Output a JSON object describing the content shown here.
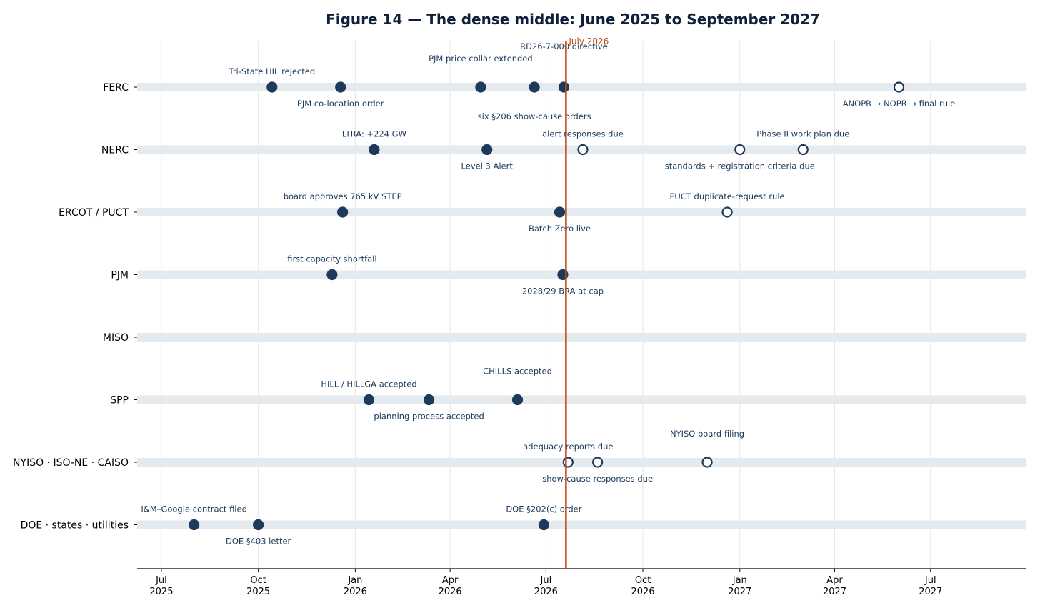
{
  "chart_data": {
    "type": "timeline",
    "title": "Figure 14 — The dense middle: June 2025 to September 2027",
    "x_range": [
      "2025-06-08",
      "2027-09-30"
    ],
    "grid": true,
    "colors": {
      "lane_band": "#e5eaef",
      "marker_fill": "#1d3a5c",
      "open_marker_fill": "#ffffff",
      "marker_stroke": "#1d3a5c",
      "grid": "#e6e6e6",
      "reference_line": "#c0460e",
      "label": "#1b3a5c",
      "title": "#0f2139"
    },
    "x_ticks": [
      {
        "date": "2025-07-01",
        "label": [
          "Jul",
          "2025"
        ]
      },
      {
        "date": "2025-10-01",
        "label": [
          "Oct",
          "2025"
        ]
      },
      {
        "date": "2026-01-01",
        "label": [
          "Jan",
          "2026"
        ]
      },
      {
        "date": "2026-04-01",
        "label": [
          "Apr",
          "2026"
        ]
      },
      {
        "date": "2026-07-01",
        "label": [
          "Jul",
          "2026"
        ]
      },
      {
        "date": "2026-10-01",
        "label": [
          "Oct",
          "2026"
        ]
      },
      {
        "date": "2027-01-01",
        "label": [
          "Jan",
          "2027"
        ]
      },
      {
        "date": "2027-04-01",
        "label": [
          "Apr",
          "2027"
        ]
      },
      {
        "date": "2027-07-01",
        "label": [
          "Jul",
          "2027"
        ]
      }
    ],
    "reference_line": {
      "date": "2026-07-20",
      "label": "July 2026"
    },
    "lanes": [
      {
        "name": "FERC",
        "events": [
          {
            "date": "2025-10-14",
            "label": "Tri-State HIL rejected",
            "label_pos": "above",
            "open": false
          },
          {
            "date": "2025-12-18",
            "label": "PJM co-location order",
            "label_pos": "below",
            "open": false
          },
          {
            "date": "2026-04-30",
            "label": "PJM price collar extended",
            "label_pos": "above2",
            "open": false
          },
          {
            "date": "2026-06-20",
            "label": "six §206 show-cause orders",
            "label_pos": "below2",
            "open": false
          },
          {
            "date": "2026-07-18",
            "label": "RD26-7-000 directive",
            "label_pos": "above3",
            "open": false
          },
          {
            "date": "2027-06-01",
            "label": "ANOPR → NOPR → final rule",
            "label_pos": "below",
            "open": true
          }
        ]
      },
      {
        "name": "NERC",
        "events": [
          {
            "date": "2026-01-19",
            "label": "LTRA: +224 GW",
            "label_pos": "above",
            "open": false
          },
          {
            "date": "2026-05-06",
            "label": "Level 3 Alert",
            "label_pos": "below",
            "open": false
          },
          {
            "date": "2026-08-05",
            "label": "alert responses due",
            "label_pos": "above",
            "open": true
          },
          {
            "date": "2027-01-01",
            "label": "standards + registration criteria due",
            "label_pos": "below",
            "open": true
          },
          {
            "date": "2027-03-02",
            "label": "Phase II work plan due",
            "label_pos": "above",
            "open": true
          }
        ]
      },
      {
        "name": "ERCOT / PUCT",
        "events": [
          {
            "date": "2025-12-20",
            "label": "board approves 765 kV STEP",
            "label_pos": "above",
            "open": false
          },
          {
            "date": "2026-07-14",
            "label": "Batch Zero live",
            "label_pos": "below",
            "open": false
          },
          {
            "date": "2026-12-20",
            "label": "PUCT duplicate-request rule",
            "label_pos": "above",
            "open": true
          }
        ]
      },
      {
        "name": "PJM",
        "events": [
          {
            "date": "2025-12-10",
            "label": "first capacity shortfall",
            "label_pos": "above",
            "open": false
          },
          {
            "date": "2026-07-17",
            "label": "2028/29 BRA at cap",
            "label_pos": "below",
            "open": false
          }
        ]
      },
      {
        "name": "MISO",
        "events": []
      },
      {
        "name": "SPP",
        "events": [
          {
            "date": "2026-01-14",
            "label": "HILL / HILLGA accepted",
            "label_pos": "above",
            "open": false
          },
          {
            "date": "2026-03-12",
            "label": "planning process accepted",
            "label_pos": "below",
            "open": false
          },
          {
            "date": "2026-06-04",
            "label": "CHILLS accepted",
            "label_pos": "above2",
            "open": false
          }
        ]
      },
      {
        "name": "NYISO · ISO-NE · CAISO",
        "events": [
          {
            "date": "2026-07-22",
            "label": "adequacy reports due",
            "label_pos": "above",
            "open": true
          },
          {
            "date": "2026-08-19",
            "label": "show-cause responses due",
            "label_pos": "below",
            "open": true
          },
          {
            "date": "2026-12-01",
            "label": "NYISO board filing",
            "label_pos": "above2",
            "open": true
          }
        ]
      },
      {
        "name": "DOE · states · utilities",
        "events": [
          {
            "date": "2025-08-01",
            "label": "I&M–Google contract filed",
            "label_pos": "above",
            "open": false
          },
          {
            "date": "2025-10-01",
            "label": "DOE §403 letter",
            "label_pos": "below",
            "open": false
          },
          {
            "date": "2026-06-29",
            "label": "DOE §202(c) order",
            "label_pos": "above",
            "open": false
          }
        ]
      }
    ]
  }
}
